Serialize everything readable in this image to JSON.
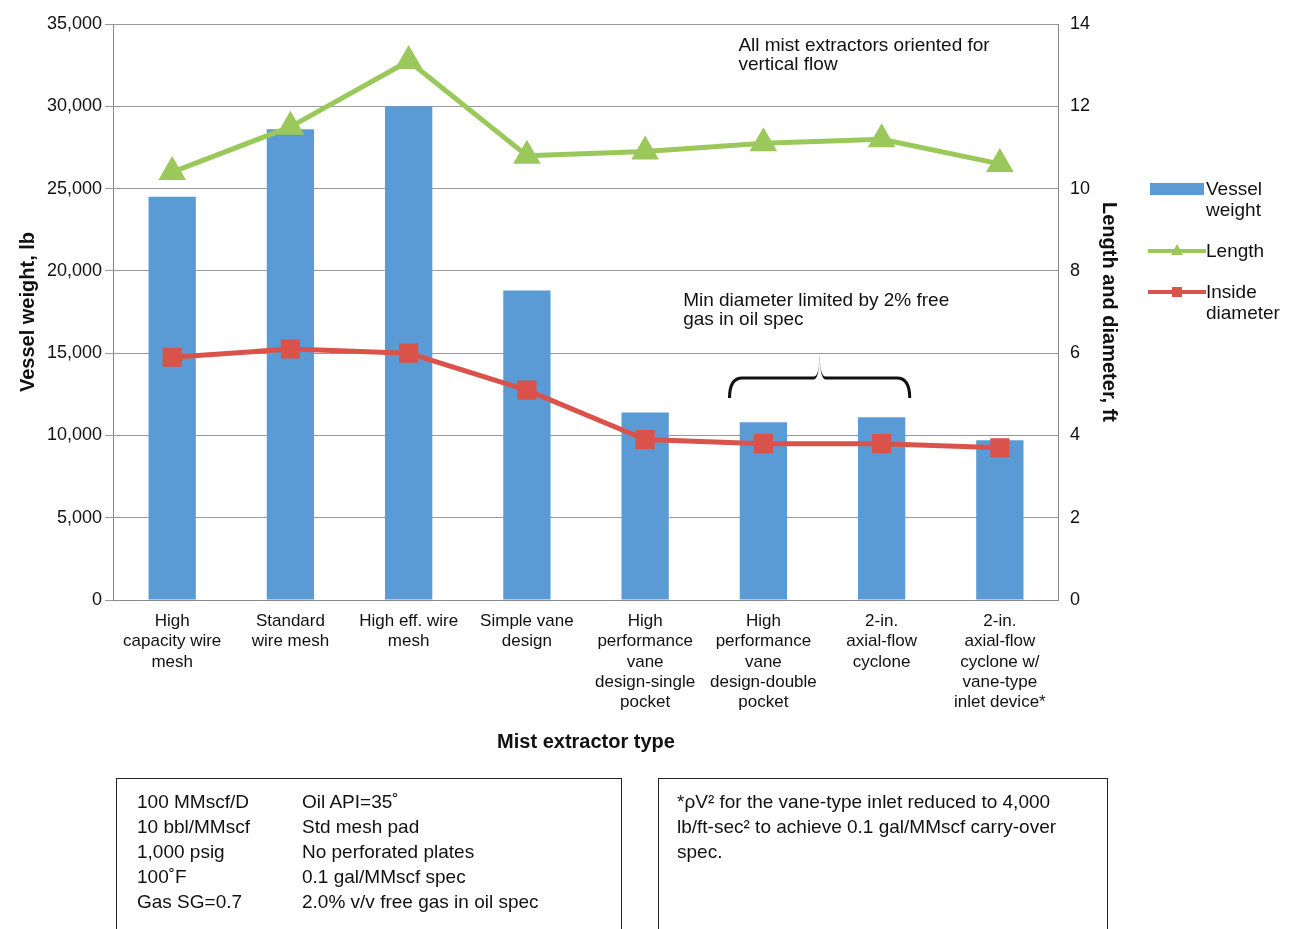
{
  "chart_data": {
    "type": "bar",
    "xlabel": "Mist extractor type",
    "ylabel": "Vessel weight, lb",
    "y2label": "Length and diameter, ft",
    "categories": [
      "High capacity wire mesh",
      "Standard wire mesh",
      "High eff. wire mesh",
      "Simple vane design",
      "High performance vane design-single pocket",
      "High performance vane design-double pocket",
      "2-in. axial-flow cyclone",
      "2-in. axial-flow cyclone w/ vane-type inlet device*"
    ],
    "series": [
      {
        "name": "Vessel weight",
        "color": "#5b9bd5",
        "values": [
          24500,
          28600,
          30000,
          18800,
          11400,
          10800,
          11100,
          9700
        ]
      },
      {
        "name": "Length",
        "type": "line",
        "axis": "y2",
        "color": "#9bc85a",
        "marker": "triangle",
        "values": [
          10.4,
          11.5,
          13.1,
          10.8,
          10.9,
          11.1,
          11.2,
          10.6
        ]
      },
      {
        "name": "Inside diameter",
        "type": "line",
        "axis": "y2",
        "color": "#d9534a",
        "marker": "square",
        "values": [
          5.9,
          6.1,
          6.0,
          5.1,
          3.9,
          3.8,
          3.8,
          3.7
        ]
      }
    ],
    "ylim": [
      0,
      35000
    ],
    "yticks": [
      0,
      {
        "value": 5000,
        "label": "5,000"
      },
      {
        "value": 10000,
        "label": "10,000"
      },
      {
        "value": 15000,
        "label": "15,000"
      },
      {
        "value": 20000,
        "label": "20,000"
      },
      {
        "value": 25000,
        "label": "25,000"
      },
      {
        "value": 30000,
        "label": "30,000"
      },
      {
        "value": 35000,
        "label": "35,000"
      }
    ],
    "y2lim": [
      0,
      14
    ],
    "y2ticks": [
      0,
      2,
      4,
      6,
      8,
      10,
      12,
      14
    ],
    "grid": "y",
    "legend": "right",
    "annotations": [
      "All mist extractors oriented for vertical flow",
      "Min diameter limited by 2% free gas in oil spec",
      "100 MMscf/D",
      "10 bbl/MMscf",
      "1,000 psig",
      "100˚F",
      "Gas SG=0.7",
      "Oil API=35˚",
      "Std mesh pad",
      "No perforated plates",
      "0.1 gal/MMscf spec",
      "2.0% v/v free gas in oil spec",
      "*ρV² for the vane-type inlet reduced to 4,000 lb/ft-sec² to achieve 0.1 gal/MMscf carry-over spec."
    ]
  }
}
